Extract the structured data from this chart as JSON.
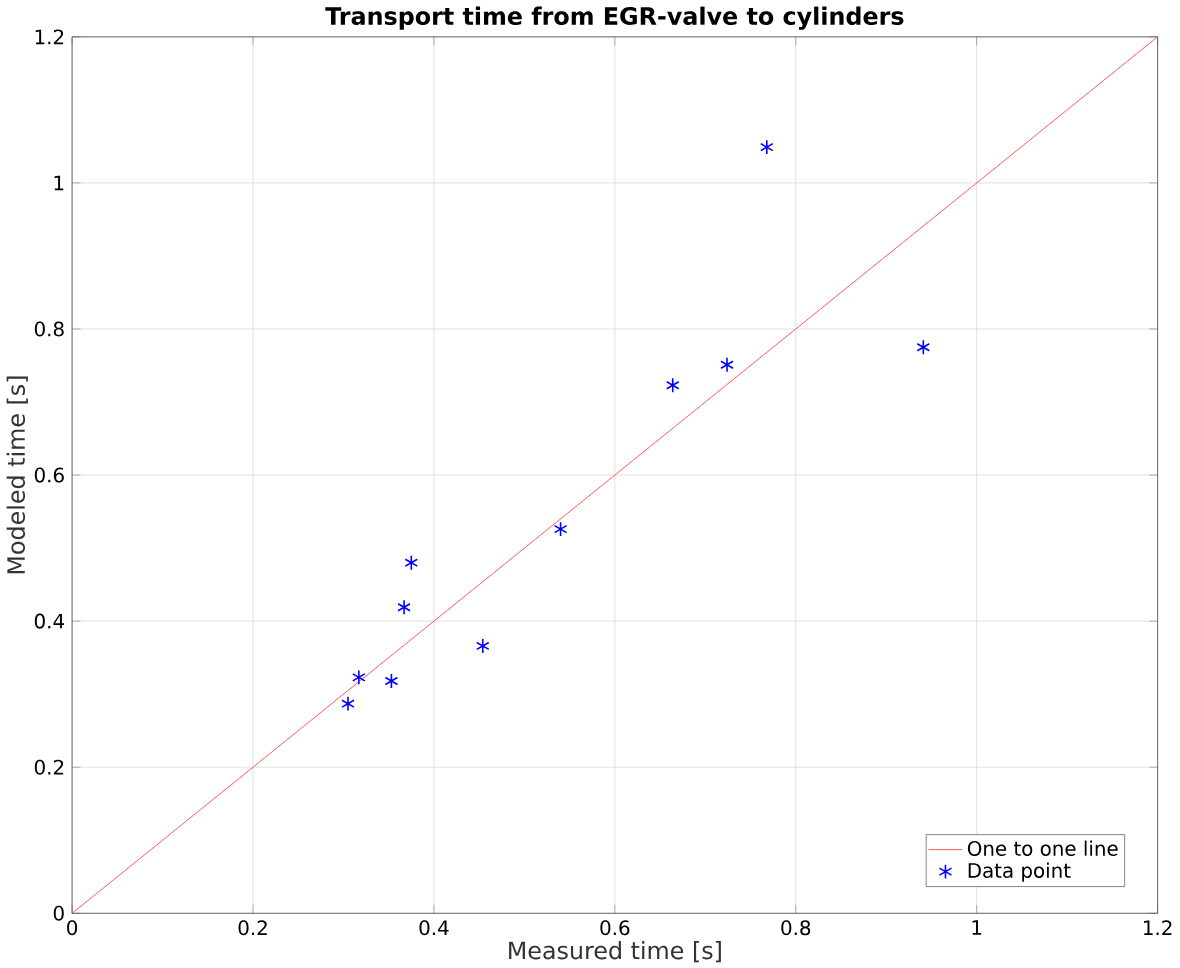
{
  "chart_data": {
    "type": "scatter",
    "title": "Transport time from EGR-valve to cylinders",
    "xlabel": "Measured time [s]",
    "ylabel": "Modeled time [s]",
    "series": [
      {
        "name": "One to one line",
        "type": "line",
        "color": "#ff3333",
        "marker": "none",
        "line_style": "solid",
        "x": [
          0,
          1.2
        ],
        "values": [
          0,
          1.2
        ]
      },
      {
        "name": "Data point",
        "color": "#0000ff",
        "marker": "cross",
        "x": [
          0.305,
          0.317,
          0.353,
          0.367,
          0.375,
          0.454,
          0.54,
          0.664,
          0.724,
          0.768,
          0.941
        ],
        "values": [
          0.287,
          0.323,
          0.318,
          0.419,
          0.48,
          0.366,
          0.526,
          0.723,
          0.751,
          1.049,
          0.775
        ]
      }
    ],
    "xlim": [
      0,
      1.2
    ],
    "ylim": [
      0,
      1.2
    ],
    "xticks": [
      0,
      0.2,
      0.4,
      0.6,
      0.8,
      1,
      1.2
    ],
    "yticks": [
      0,
      0.2,
      0.4,
      0.6,
      0.8,
      1,
      1.2
    ],
    "grid": true,
    "legend": "bottom right"
  }
}
